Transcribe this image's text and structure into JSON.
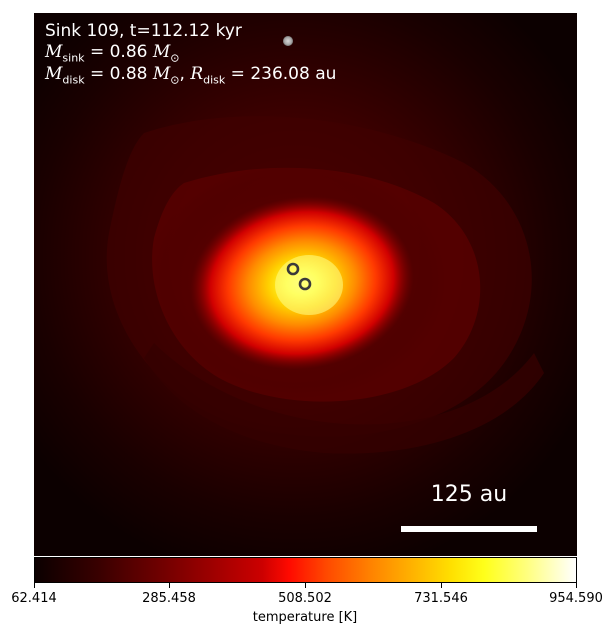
{
  "title": {
    "line1": "Sink 109, t=112.12 kyr",
    "m_sink_symbol": "M",
    "m_sink_sub": "sink",
    "m_sink_value": " = 0.86 ",
    "m_sun_symbol": "M",
    "m_sun_sub": "⊙",
    "m_disk_symbol": "M",
    "m_disk_sub": "disk",
    "m_disk_value": " = 0.88 ",
    "sep": ", ",
    "r_disk_symbol": "R",
    "r_disk_sub": "disk",
    "r_disk_value": " = 236.08 au"
  },
  "scale_bar": {
    "label": "125 au"
  },
  "colorbar": {
    "label": "temperature [K]",
    "ticks": [
      "62.414",
      "285.458",
      "508.502",
      "731.546",
      "954.590"
    ],
    "colormap": "hot"
  },
  "sinks": {
    "count": 3,
    "colors": {
      "outline": "#3a3a3a",
      "faint": "#bdbdbd"
    }
  },
  "colors": {
    "background": "#100000",
    "disk_core": "#ffff60",
    "disk_outer": "#ff2000"
  }
}
